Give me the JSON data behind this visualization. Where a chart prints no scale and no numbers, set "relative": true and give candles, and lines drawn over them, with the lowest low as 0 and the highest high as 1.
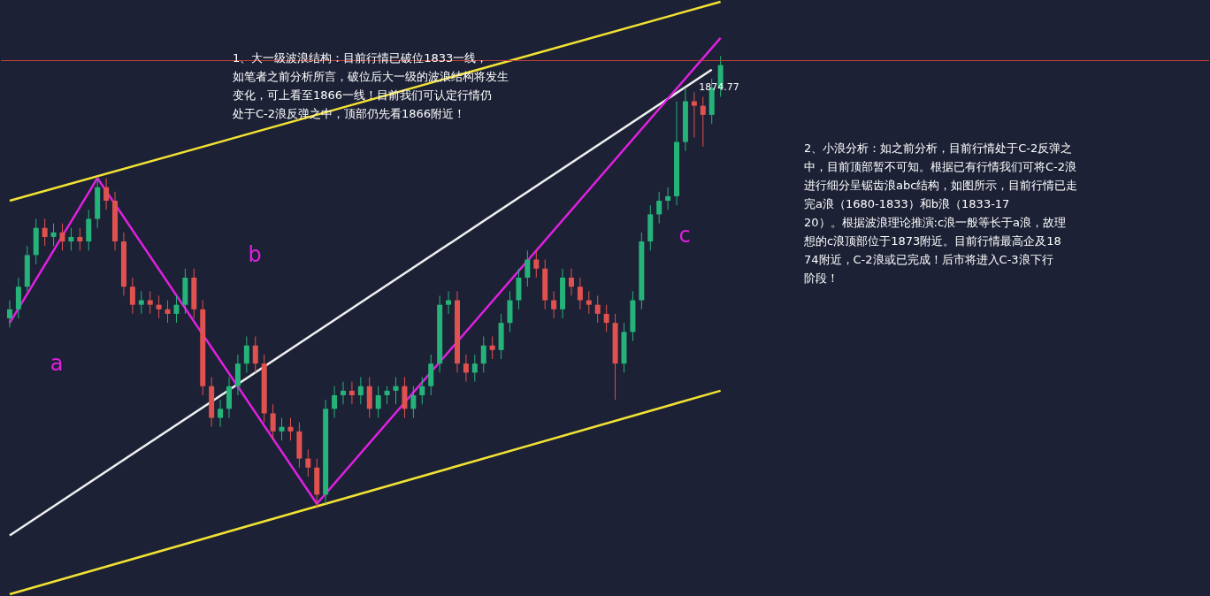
{
  "chart_data": {
    "type": "candlestick",
    "relative": true,
    "categories": [
      null,
      null,
      null,
      null,
      null,
      null,
      null,
      null,
      null,
      null,
      null,
      null,
      null,
      null,
      null,
      null,
      null,
      null,
      null,
      null,
      null,
      null,
      null,
      null,
      null,
      null,
      null,
      null,
      null,
      null,
      null,
      null,
      null,
      null,
      null,
      null,
      null,
      null,
      null,
      null,
      null,
      null,
      null,
      null,
      null,
      null,
      null,
      null,
      null,
      null,
      null,
      null,
      null,
      null,
      null,
      null,
      null,
      null,
      null,
      null,
      null,
      null,
      null,
      null,
      null,
      null,
      null,
      null,
      null,
      null,
      null,
      null,
      null,
      null,
      null,
      null,
      null,
      null,
      null,
      null,
      null,
      null
    ],
    "ohlc": [
      [
        0.42,
        0.46,
        0.4,
        0.44
      ],
      [
        0.44,
        0.51,
        0.42,
        0.49
      ],
      [
        0.49,
        0.58,
        0.48,
        0.56
      ],
      [
        0.56,
        0.64,
        0.54,
        0.62
      ],
      [
        0.62,
        0.64,
        0.58,
        0.6
      ],
      [
        0.6,
        0.63,
        0.58,
        0.61
      ],
      [
        0.61,
        0.63,
        0.57,
        0.59
      ],
      [
        0.59,
        0.62,
        0.57,
        0.6
      ],
      [
        0.6,
        0.62,
        0.57,
        0.59
      ],
      [
        0.59,
        0.66,
        0.57,
        0.64
      ],
      [
        0.64,
        0.73,
        0.62,
        0.71
      ],
      [
        0.71,
        0.73,
        0.66,
        0.68
      ],
      [
        0.68,
        0.7,
        0.57,
        0.59
      ],
      [
        0.59,
        0.61,
        0.47,
        0.49
      ],
      [
        0.49,
        0.51,
        0.43,
        0.45
      ],
      [
        0.45,
        0.48,
        0.43,
        0.46
      ],
      [
        0.46,
        0.48,
        0.43,
        0.45
      ],
      [
        0.45,
        0.47,
        0.42,
        0.44
      ],
      [
        0.44,
        0.46,
        0.41,
        0.43
      ],
      [
        0.43,
        0.47,
        0.41,
        0.45
      ],
      [
        0.45,
        0.53,
        0.43,
        0.51
      ],
      [
        0.51,
        0.53,
        0.42,
        0.44
      ],
      [
        0.44,
        0.46,
        0.25,
        0.27
      ],
      [
        0.27,
        0.29,
        0.18,
        0.2
      ],
      [
        0.2,
        0.24,
        0.18,
        0.22
      ],
      [
        0.22,
        0.29,
        0.2,
        0.27
      ],
      [
        0.27,
        0.34,
        0.25,
        0.32
      ],
      [
        0.32,
        0.38,
        0.3,
        0.36
      ],
      [
        0.36,
        0.38,
        0.3,
        0.32
      ],
      [
        0.32,
        0.34,
        0.19,
        0.21
      ],
      [
        0.21,
        0.23,
        0.15,
        0.17
      ],
      [
        0.17,
        0.2,
        0.15,
        0.18
      ],
      [
        0.18,
        0.2,
        0.15,
        0.17
      ],
      [
        0.17,
        0.19,
        0.09,
        0.11
      ],
      [
        0.11,
        0.13,
        0.07,
        0.09
      ],
      [
        0.09,
        0.11,
        0,
        0.03
      ],
      [
        0.03,
        0.24,
        0.01,
        0.22
      ],
      [
        0.22,
        0.27,
        0.2,
        0.25
      ],
      [
        0.25,
        0.28,
        0.23,
        0.26
      ],
      [
        0.26,
        0.28,
        0.23,
        0.25
      ],
      [
        0.25,
        0.29,
        0.23,
        0.27
      ],
      [
        0.27,
        0.29,
        0.2,
        0.22
      ],
      [
        0.22,
        0.27,
        0.2,
        0.25
      ],
      [
        0.25,
        0.27,
        0.23,
        0.26
      ],
      [
        0.26,
        0.29,
        0.23,
        0.27
      ],
      [
        0.27,
        0.29,
        0.2,
        0.22
      ],
      [
        0.22,
        0.27,
        0.2,
        0.25
      ],
      [
        0.25,
        0.29,
        0.23,
        0.27
      ],
      [
        0.27,
        0.34,
        0.25,
        0.32
      ],
      [
        0.32,
        0.47,
        0.3,
        0.45
      ],
      [
        0.45,
        0.48,
        0.43,
        0.46
      ],
      [
        0.46,
        0.48,
        0.3,
        0.32
      ],
      [
        0.32,
        0.34,
        0.28,
        0.3
      ],
      [
        0.3,
        0.34,
        0.28,
        0.32
      ],
      [
        0.32,
        0.38,
        0.3,
        0.36
      ],
      [
        0.36,
        0.38,
        0.33,
        0.35
      ],
      [
        0.35,
        0.43,
        0.33,
        0.41
      ],
      [
        0.41,
        0.48,
        0.39,
        0.46
      ],
      [
        0.46,
        0.53,
        0.44,
        0.51
      ],
      [
        0.51,
        0.57,
        0.49,
        0.55
      ],
      [
        0.55,
        0.57,
        0.51,
        0.53
      ],
      [
        0.53,
        0.55,
        0.44,
        0.46
      ],
      [
        0.46,
        0.48,
        0.42,
        0.44
      ],
      [
        0.44,
        0.53,
        0.42,
        0.51
      ],
      [
        0.51,
        0.53,
        0.47,
        0.49
      ],
      [
        0.49,
        0.51,
        0.44,
        0.46
      ],
      [
        0.46,
        0.48,
        0.43,
        0.45
      ],
      [
        0.45,
        0.47,
        0.41,
        0.43
      ],
      [
        0.43,
        0.45,
        0.39,
        0.41
      ],
      [
        0.41,
        0.43,
        0.24,
        0.32
      ],
      [
        0.32,
        0.41,
        0.3,
        0.39
      ],
      [
        0.39,
        0.48,
        0.37,
        0.46
      ],
      [
        0.46,
        0.61,
        0.44,
        0.59
      ],
      [
        0.59,
        0.67,
        0.57,
        0.65
      ],
      [
        0.65,
        0.7,
        0.63,
        0.68
      ],
      [
        0.68,
        0.71,
        0.66,
        0.69
      ],
      [
        0.69,
        0.9,
        0.67,
        0.81
      ],
      [
        0.81,
        0.93,
        0.79,
        0.9
      ],
      [
        0.9,
        0.92,
        0.82,
        0.89
      ],
      [
        0.89,
        0.91,
        0.8,
        0.87
      ],
      [
        0.87,
        0.95,
        0.85,
        0.93
      ],
      [
        0.93,
        1.0,
        0.91,
        0.98
      ]
    ],
    "series": [
      {
        "type": "line",
        "color": "#f2e234",
        "values": [
          0.68,
          null,
          null,
          null,
          null,
          null,
          null,
          null,
          null,
          null,
          null,
          null,
          null,
          null,
          null,
          null,
          null,
          null,
          null,
          null,
          null,
          null,
          null,
          null,
          null,
          null,
          null,
          null,
          null,
          null,
          null,
          null,
          null,
          null,
          null,
          null,
          null,
          null,
          null,
          null,
          null,
          null,
          null,
          null,
          null,
          null,
          null,
          null,
          null,
          null,
          null,
          null,
          null,
          null,
          null,
          null,
          null,
          null,
          null,
          null,
          null,
          null,
          null,
          null,
          null,
          null,
          null,
          null,
          null,
          null,
          null,
          null,
          null,
          null,
          null,
          null,
          null,
          null,
          null,
          null,
          null,
          1.12
        ]
      },
      {
        "type": "line",
        "color": "#f2e234",
        "values": [
          -0.19,
          null,
          null,
          null,
          null,
          null,
          null,
          null,
          null,
          null,
          null,
          null,
          null,
          null,
          null,
          null,
          null,
          null,
          null,
          null,
          null,
          null,
          null,
          null,
          null,
          null,
          null,
          null,
          null,
          null,
          null,
          null,
          null,
          null,
          null,
          null,
          null,
          null,
          null,
          null,
          null,
          null,
          null,
          null,
          null,
          null,
          null,
          null,
          null,
          null,
          null,
          null,
          null,
          null,
          null,
          null,
          null,
          null,
          null,
          null,
          null,
          null,
          null,
          null,
          null,
          null,
          null,
          null,
          null,
          null,
          null,
          null,
          null,
          null,
          null,
          null,
          null,
          null,
          null,
          null,
          null,
          0.26
        ]
      },
      {
        "type": "line",
        "color": "#f0f0f0",
        "values": [
          -0.06,
          null,
          null,
          null,
          null,
          null,
          null,
          null,
          null,
          null,
          null,
          null,
          null,
          null,
          null,
          null,
          null,
          null,
          null,
          null,
          null,
          null,
          null,
          null,
          null,
          null,
          null,
          null,
          null,
          null,
          null,
          null,
          null,
          null,
          null,
          null,
          null,
          null,
          null,
          null,
          null,
          null,
          null,
          null,
          null,
          null,
          null,
          null,
          null,
          null,
          null,
          null,
          null,
          null,
          null,
          null,
          null,
          null,
          null,
          null,
          null,
          null,
          null,
          null,
          null,
          null,
          null,
          null,
          null,
          null,
          null,
          null,
          null,
          null,
          null,
          null,
          null,
          null,
          null,
          null,
          0.97,
          null
        ]
      },
      {
        "type": "line",
        "color": "#e020e0",
        "values": [
          0.41,
          null,
          null,
          null,
          null,
          null,
          null,
          null,
          null,
          null,
          0.73,
          null,
          null,
          null,
          null,
          null,
          null,
          null,
          null,
          null,
          null,
          null,
          null,
          null,
          null,
          null,
          null,
          null,
          null,
          null,
          null,
          null,
          null,
          null,
          null,
          0.01,
          null,
          null,
          null,
          null,
          null,
          null,
          null,
          null,
          null,
          null,
          null,
          null,
          null,
          null,
          null,
          null,
          null,
          null,
          null,
          null,
          null,
          null,
          null,
          null,
          null,
          null,
          null,
          null,
          null,
          null,
          null,
          null,
          null,
          null,
          null,
          null,
          null,
          null,
          null,
          null,
          null,
          null,
          null,
          null,
          null,
          1.04
        ]
      }
    ],
    "ref_lines": [
      {
        "axis": "y",
        "value": 0.99,
        "color": "#c0403c"
      }
    ],
    "annotations": [
      "a",
      "b",
      "c",
      "1874.77",
      "1、大一级波浪结构：目前行情已破位1833一线，如笔者之前分析所言，破位后大一级的波浪结构将发生变化，可上看至1866一线！目前我们可认定行情仍处于C-2浪反弹之中，顶部仍先看1866附近！",
      "2、小浪分析：如之前分析，目前行情处于C-2反弹之中，目前顶部暂不可知。根据已有行情我们可将C-2浪进行细分呈锯齿浪abc结构，如图所示，目前行情已走完a浪（1680-1833）和b浪（1833-1720）。根据波浪理论推演:c浪一般等长于a浪，故理想的c浪顶部位于1873附近。目前行情最高企及1874附近，C-2浪或已完成！后市将进入C-3浪下行阶段！"
    ]
  }
}
